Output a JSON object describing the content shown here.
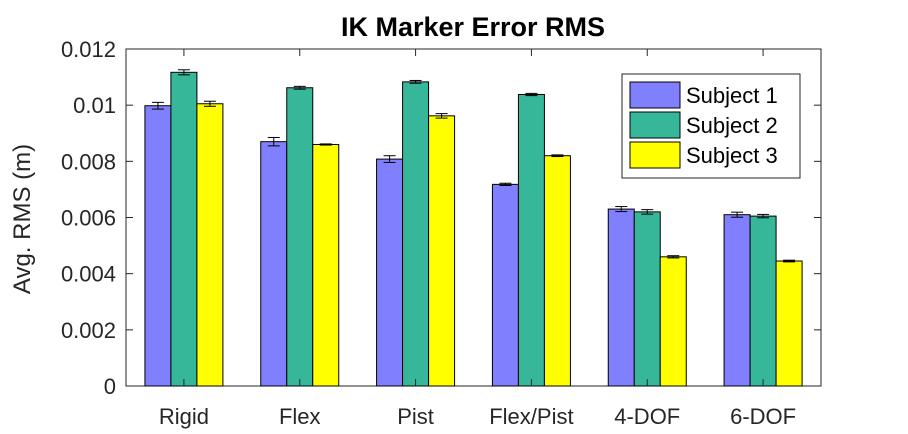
{
  "chart_data": {
    "type": "bar",
    "title": "IK Marker Error RMS",
    "xlabel": "",
    "ylabel": "Avg. RMS (m)",
    "ylim": [
      0,
      0.012
    ],
    "yticks": [
      "0",
      "0.002",
      "0.004",
      "0.006",
      "0.008",
      "0.01",
      "0.012"
    ],
    "categories": [
      "Rigid",
      "Flex",
      "Pist",
      "Flex/Pist",
      "4-DOF",
      "6-DOF"
    ],
    "series": [
      {
        "name": "Subject 1",
        "color": "#8080ff",
        "values": [
          0.00998,
          0.0087,
          0.00808,
          0.00718,
          0.0063,
          0.0061
        ],
        "errors": [
          0.00012,
          0.00015,
          0.00012,
          4e-05,
          9e-05,
          9e-05
        ]
      },
      {
        "name": "Subject 2",
        "color": "#36b79a",
        "values": [
          0.01117,
          0.01062,
          0.01083,
          0.01038,
          0.0062,
          0.00605
        ],
        "errors": [
          9e-05,
          5e-05,
          5e-05,
          4e-05,
          8e-05,
          6e-05
        ]
      },
      {
        "name": "Subject 3",
        "color": "#ffff00",
        "values": [
          0.01005,
          0.0086,
          0.00962,
          0.0082,
          0.0046,
          0.00445
        ],
        "errors": [
          9e-05,
          2e-05,
          8e-05,
          3e-05,
          4e-05,
          3e-05
        ]
      }
    ],
    "legend": "top-right",
    "grid": false
  }
}
